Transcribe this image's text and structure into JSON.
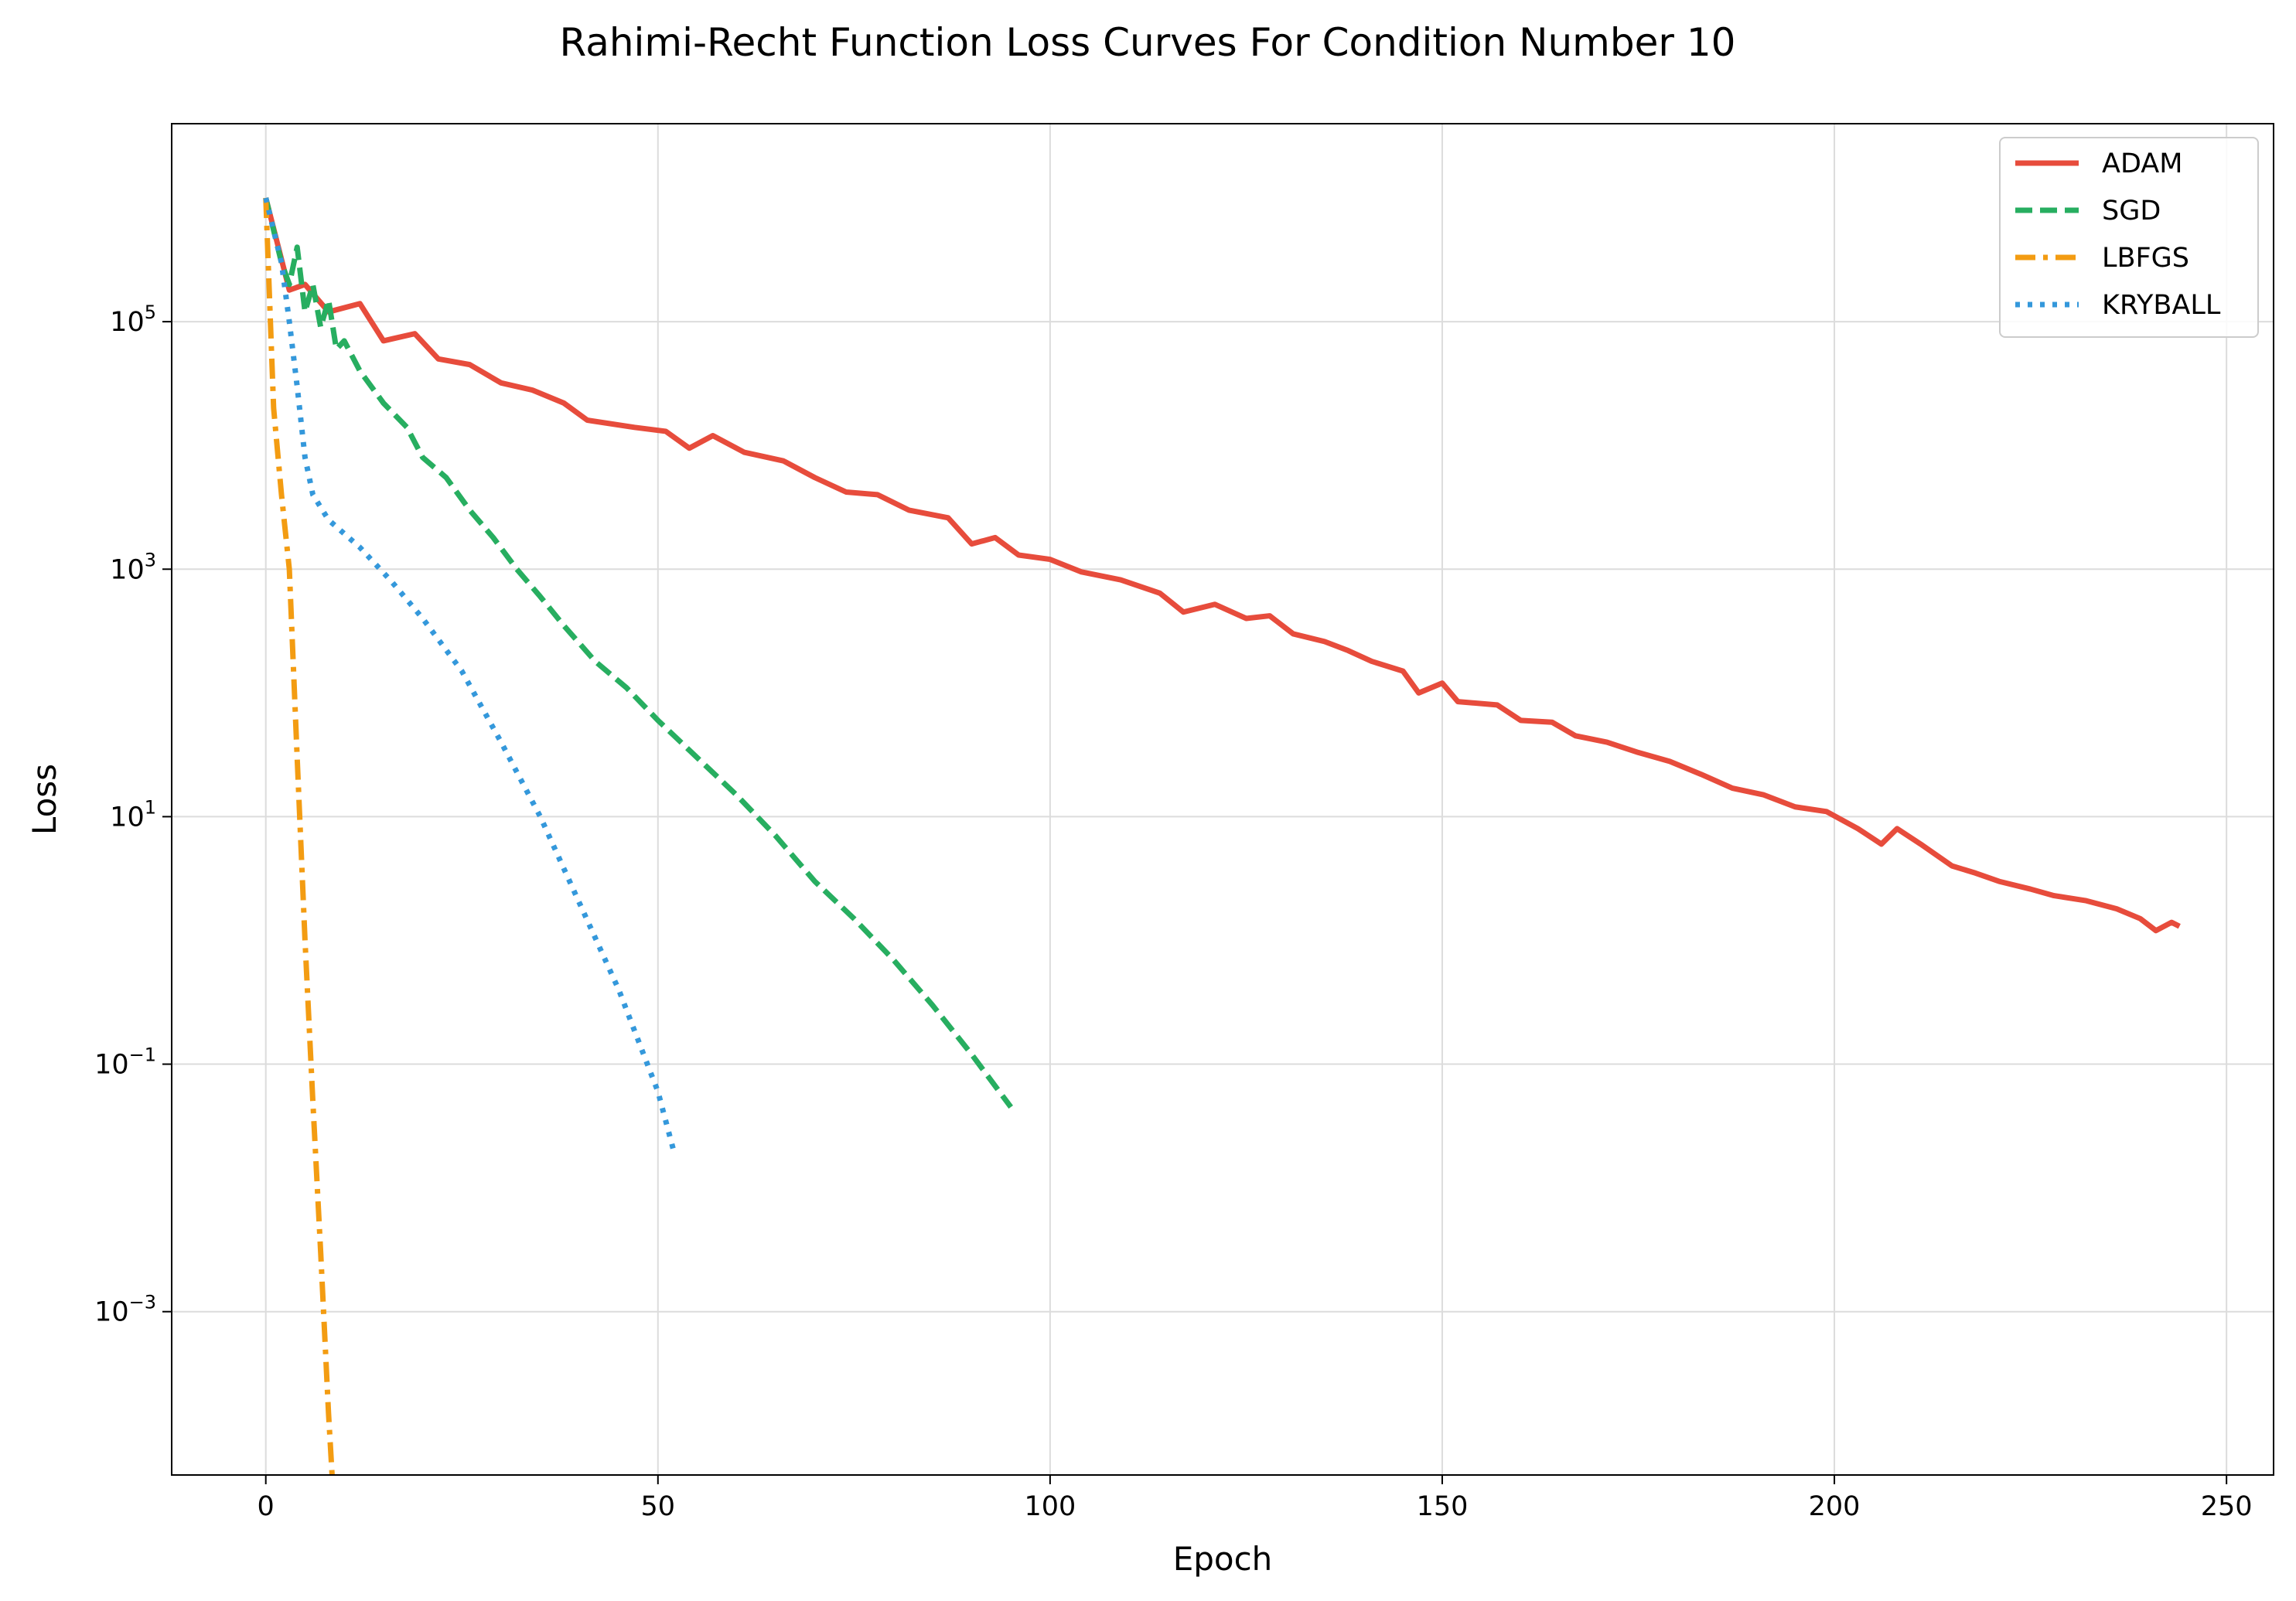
{
  "chart_data": {
    "type": "line",
    "title": "Rahimi-Recht Function Loss Curves For Condition Number 10",
    "xlabel": "Epoch",
    "ylabel": "Loss",
    "xscale": "linear",
    "yscale": "log",
    "xlim": [
      -12,
      256
    ],
    "ylim_log10": [
      -4.32,
      6.6
    ],
    "xticks": [
      0,
      50,
      100,
      150,
      200,
      250
    ],
    "yticks_log10": [
      5,
      3,
      1,
      -1,
      -3
    ],
    "grid": true,
    "legend_position": "top-right",
    "series": [
      {
        "name": "ADAM",
        "color": "#e74c3c",
        "style": "solid",
        "points": [
          [
            0,
            1000000
          ],
          [
            3,
            180000
          ],
          [
            5,
            200000
          ],
          [
            8,
            120000
          ],
          [
            12,
            140000
          ],
          [
            15,
            70000
          ],
          [
            19,
            80000
          ],
          [
            22,
            50000
          ],
          [
            26,
            45000
          ],
          [
            30,
            32000
          ],
          [
            34,
            28000
          ],
          [
            38,
            22000
          ],
          [
            41,
            16000
          ],
          [
            47,
            14000
          ],
          [
            51,
            13000
          ],
          [
            54,
            9500
          ],
          [
            57,
            12000
          ],
          [
            61,
            8800
          ],
          [
            66,
            7500
          ],
          [
            70,
            5500
          ],
          [
            74,
            4200
          ],
          [
            78,
            4000
          ],
          [
            82,
            3000
          ],
          [
            87,
            2600
          ],
          [
            90,
            1600
          ],
          [
            93,
            1800
          ],
          [
            96,
            1300
          ],
          [
            100,
            1200
          ],
          [
            104,
            950
          ],
          [
            109,
            820
          ],
          [
            114,
            640
          ],
          [
            117,
            450
          ],
          [
            121,
            520
          ],
          [
            125,
            400
          ],
          [
            128,
            420
          ],
          [
            131,
            300
          ],
          [
            135,
            260
          ],
          [
            138,
            220
          ],
          [
            141,
            180
          ],
          [
            145,
            150
          ],
          [
            147,
            100
          ],
          [
            150,
            120
          ],
          [
            152,
            85
          ],
          [
            157,
            80
          ],
          [
            160,
            60
          ],
          [
            164,
            58
          ],
          [
            167,
            45
          ],
          [
            171,
            40
          ],
          [
            175,
            33
          ],
          [
            179,
            28
          ],
          [
            183,
            22
          ],
          [
            187,
            17
          ],
          [
            191,
            15
          ],
          [
            195,
            12
          ],
          [
            199,
            11
          ],
          [
            203,
            8
          ],
          [
            206,
            6
          ],
          [
            208,
            8
          ],
          [
            211,
            6
          ],
          [
            215,
            4
          ],
          [
            218,
            3.5
          ],
          [
            221,
            3
          ],
          [
            225,
            2.6
          ],
          [
            228,
            2.3
          ],
          [
            232,
            2.1
          ],
          [
            236,
            1.8
          ],
          [
            239,
            1.5
          ],
          [
            241,
            1.2
          ],
          [
            243,
            1.4
          ],
          [
            244,
            1.3
          ]
        ]
      },
      {
        "name": "SGD",
        "color": "#27ae60",
        "style": "dashed",
        "points": [
          [
            0,
            1000000
          ],
          [
            2,
            300000
          ],
          [
            3,
            200000
          ],
          [
            4,
            400000
          ],
          [
            5,
            120000
          ],
          [
            6,
            200000
          ],
          [
            7,
            90000
          ],
          [
            8,
            150000
          ],
          [
            9,
            60000
          ],
          [
            10,
            70000
          ],
          [
            12,
            40000
          ],
          [
            15,
            22000
          ],
          [
            18,
            14000
          ],
          [
            20,
            8000
          ],
          [
            23,
            5500
          ],
          [
            26,
            3000
          ],
          [
            29,
            1800
          ],
          [
            32,
            1000
          ],
          [
            35,
            600
          ],
          [
            38,
            350
          ],
          [
            42,
            180
          ],
          [
            46,
            110
          ],
          [
            50,
            60
          ],
          [
            55,
            30
          ],
          [
            60,
            15
          ],
          [
            65,
            7
          ],
          [
            70,
            3
          ],
          [
            75,
            1.5
          ],
          [
            80,
            0.7
          ],
          [
            85,
            0.3
          ],
          [
            90,
            0.12
          ],
          [
            95,
            0.045
          ]
        ]
      },
      {
        "name": "LBFGS",
        "color": "#f39c12",
        "style": "dashdot",
        "points": [
          [
            0,
            1000000
          ],
          [
            1,
            20000
          ],
          [
            2,
            4000
          ],
          [
            3,
            1000
          ],
          [
            4,
            30
          ],
          [
            5,
            1
          ],
          [
            6,
            0.05
          ],
          [
            7,
            0.003
          ],
          [
            8,
            0.00015
          ],
          [
            9,
            1.2e-05
          ]
        ]
      },
      {
        "name": "KRYBALL",
        "color": "#3498db",
        "style": "dotted",
        "points": [
          [
            0,
            1000000
          ],
          [
            2,
            300000
          ],
          [
            3,
            100000
          ],
          [
            4,
            30000
          ],
          [
            5,
            8000
          ],
          [
            6,
            4000
          ],
          [
            8,
            2500
          ],
          [
            12,
            1500
          ],
          [
            16,
            800
          ],
          [
            20,
            400
          ],
          [
            25,
            150
          ],
          [
            30,
            40
          ],
          [
            35,
            10
          ],
          [
            40,
            2
          ],
          [
            45,
            0.4
          ],
          [
            50,
            0.06
          ],
          [
            52,
            0.02
          ]
        ]
      }
    ]
  }
}
